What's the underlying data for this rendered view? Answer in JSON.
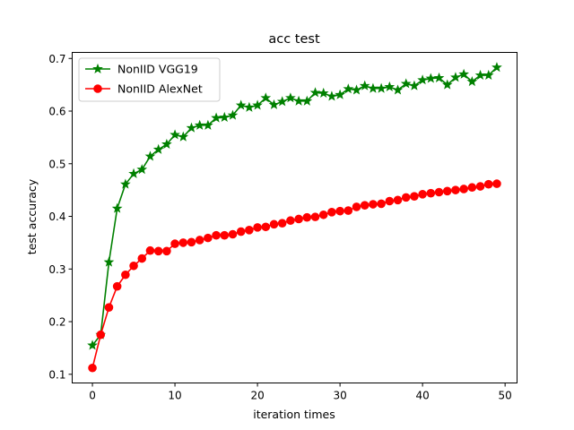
{
  "chart_data": {
    "type": "line",
    "title": "acc test",
    "xlabel": "iteration times",
    "ylabel": "test accuracy",
    "xlim": [
      -2.45,
      51.45
    ],
    "ylim": [
      0.0835,
      0.7115
    ],
    "xticks": [
      0,
      10,
      20,
      30,
      40,
      50
    ],
    "yticks": [
      0.1,
      0.2,
      0.3,
      0.4,
      0.5,
      0.6,
      0.7
    ],
    "xtick_labels": [
      "0",
      "10",
      "20",
      "30",
      "40",
      "50"
    ],
    "ytick_labels": [
      "0.1",
      "0.2",
      "0.3",
      "0.4",
      "0.5",
      "0.6",
      "0.7"
    ],
    "grid": false,
    "legend_position": "upper left",
    "x": [
      0,
      1,
      2,
      3,
      4,
      5,
      6,
      7,
      8,
      9,
      10,
      11,
      12,
      13,
      14,
      15,
      16,
      17,
      18,
      19,
      20,
      21,
      22,
      23,
      24,
      25,
      26,
      27,
      28,
      29,
      30,
      31,
      32,
      33,
      34,
      35,
      36,
      37,
      38,
      39,
      40,
      41,
      42,
      43,
      44,
      45,
      46,
      47,
      48,
      49
    ],
    "series": [
      {
        "name": "NonIID VGG19",
        "color": "#008000",
        "marker": "star",
        "values": [
          0.155,
          0.175,
          0.313,
          0.415,
          0.461,
          0.481,
          0.489,
          0.514,
          0.527,
          0.537,
          0.555,
          0.551,
          0.568,
          0.573,
          0.573,
          0.587,
          0.588,
          0.592,
          0.611,
          0.607,
          0.611,
          0.625,
          0.612,
          0.618,
          0.625,
          0.619,
          0.619,
          0.635,
          0.634,
          0.628,
          0.631,
          0.642,
          0.64,
          0.648,
          0.643,
          0.643,
          0.646,
          0.64,
          0.652,
          0.648,
          0.659,
          0.662,
          0.663,
          0.65,
          0.664,
          0.67,
          0.656,
          0.668,
          0.668,
          0.683
        ]
      },
      {
        "name": "NonIID AlexNet",
        "color": "#ff0000",
        "marker": "circle",
        "values": [
          0.112,
          0.175,
          0.227,
          0.267,
          0.289,
          0.306,
          0.32,
          0.335,
          0.334,
          0.334,
          0.348,
          0.35,
          0.351,
          0.355,
          0.359,
          0.364,
          0.364,
          0.366,
          0.371,
          0.374,
          0.379,
          0.38,
          0.385,
          0.387,
          0.392,
          0.395,
          0.398,
          0.399,
          0.403,
          0.408,
          0.41,
          0.411,
          0.418,
          0.421,
          0.423,
          0.424,
          0.429,
          0.431,
          0.436,
          0.438,
          0.442,
          0.444,
          0.446,
          0.448,
          0.45,
          0.452,
          0.455,
          0.457,
          0.461,
          0.462
        ]
      }
    ]
  }
}
